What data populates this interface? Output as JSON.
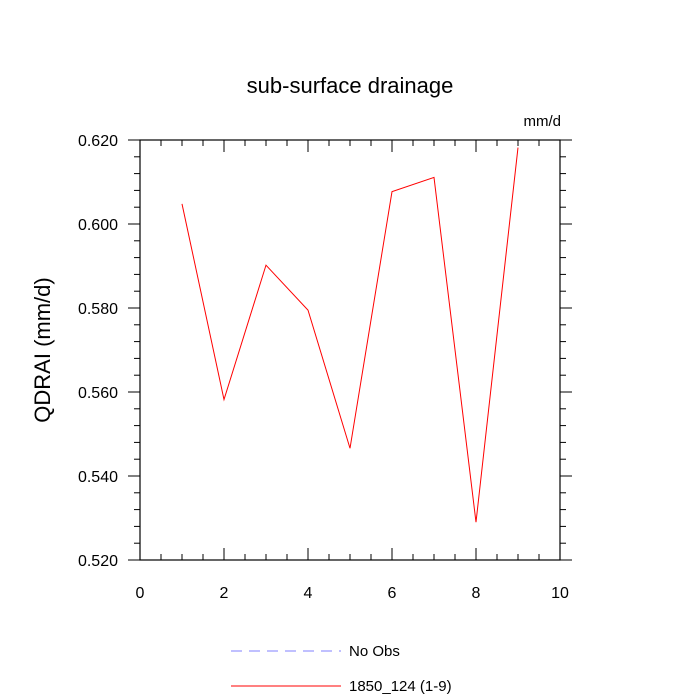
{
  "chart_data": {
    "type": "line",
    "title": "sub-surface drainage",
    "units_label": "mm/d",
    "xlabel": "",
    "ylabel": "QDRAI  (mm/d)",
    "xlim": [
      0,
      10
    ],
    "ylim": [
      0.52,
      0.62
    ],
    "x_ticks": [
      0,
      2,
      4,
      6,
      8,
      10
    ],
    "x_tick_labels": [
      "0",
      "2",
      "4",
      "6",
      "8",
      "10"
    ],
    "y_ticks": [
      0.52,
      0.54,
      0.56,
      0.58,
      0.6,
      0.62
    ],
    "y_tick_labels": [
      "0.520",
      "0.540",
      "0.560",
      "0.580",
      "0.600",
      "0.620"
    ],
    "grid": false,
    "legend_position": "bottom-center",
    "series": [
      {
        "name": "1850_124 (1-9)",
        "color": "#ff0000",
        "dash": "solid",
        "x": [
          1,
          2,
          3,
          4,
          5,
          6,
          7,
          8,
          9
        ],
        "y": [
          0.6048,
          0.5582,
          0.5902,
          0.5795,
          0.5466,
          0.6077,
          0.6111,
          0.529,
          0.6182
        ]
      }
    ],
    "legend": [
      {
        "label": "No Obs",
        "color": "#8080ff",
        "dash": "dashed"
      },
      {
        "label": "1850_124 (1-9)",
        "color": "#ff0000",
        "dash": "solid"
      }
    ]
  }
}
